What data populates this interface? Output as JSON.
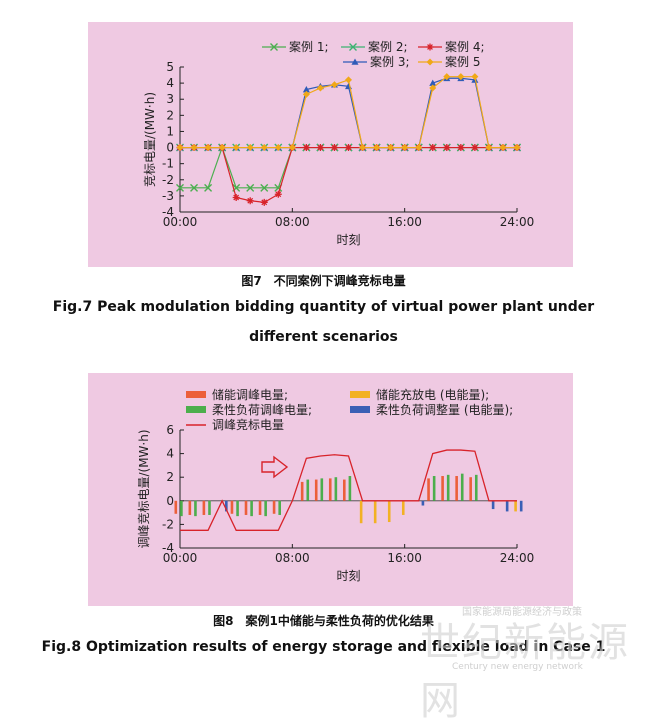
{
  "chart_data": [
    {
      "type": "line",
      "title": "",
      "xlabel": "时刻",
      "ylabel": "竞标电量/(MW·h)",
      "xlim": [
        0,
        24
      ],
      "ylim": [
        -4,
        5
      ],
      "x_ticks": [
        "00:00",
        "08:00",
        "16:00",
        "24:00"
      ],
      "y_ticks": [
        "-4",
        "-3",
        "-2",
        "-1",
        "0",
        "1",
        "2",
        "3",
        "4",
        "5"
      ],
      "legend": [
        "案例 1;",
        "案例 2;",
        "案例 3;",
        "案例 4;",
        "案例 5"
      ],
      "x": [
        0,
        1,
        2,
        3,
        4,
        5,
        6,
        7,
        8,
        9,
        10,
        11,
        12,
        13,
        14,
        15,
        16,
        17,
        18,
        19,
        20,
        21,
        22,
        23,
        24
      ],
      "series": [
        {
          "name": "案例 1;",
          "color": "#4caf50",
          "marker": "x",
          "values": [
            -2.5,
            -2.5,
            -2.5,
            0,
            -2.5,
            -2.5,
            -2.5,
            -2.5,
            0,
            0,
            0,
            0,
            0,
            0,
            0,
            0,
            0,
            0,
            0,
            0,
            0,
            0,
            0,
            0,
            0
          ]
        },
        {
          "name": "案例 2;",
          "color": "#3cb371",
          "marker": "x",
          "values": [
            0,
            0,
            0,
            0,
            0,
            0,
            0,
            0,
            0,
            0,
            0,
            0,
            0,
            0,
            0,
            0,
            0,
            0,
            0,
            0,
            0,
            0,
            0,
            0,
            0
          ]
        },
        {
          "name": "案例 3;",
          "color": "#2f5bb8",
          "marker": "triangle",
          "values": [
            0,
            0,
            0,
            0,
            0,
            0,
            0,
            0,
            0,
            3.6,
            3.8,
            3.9,
            3.8,
            0,
            0,
            0,
            0,
            0,
            4.0,
            4.3,
            4.3,
            4.2,
            0,
            0,
            0
          ]
        },
        {
          "name": "案例 4;",
          "color": "#d8232a",
          "marker": "star",
          "values": [
            0,
            0,
            0,
            0,
            -3.1,
            -3.3,
            -3.4,
            -2.9,
            0,
            0,
            0,
            0,
            0,
            0,
            0,
            0,
            0,
            0,
            0,
            0,
            0,
            0,
            0,
            0,
            0
          ]
        },
        {
          "name": "案例 5",
          "color": "#f0a818",
          "marker": "diamond",
          "values": [
            0,
            0,
            0,
            0,
            0,
            0,
            0,
            0,
            0,
            3.3,
            3.7,
            3.9,
            4.2,
            0,
            0,
            0,
            0,
            0,
            3.7,
            4.4,
            4.4,
            4.4,
            0,
            0,
            0
          ]
        }
      ]
    },
    {
      "type": "bar",
      "title": "",
      "xlabel": "时刻",
      "ylabel": "调峰竞标电量/(MW·h)",
      "xlim": [
        0,
        24
      ],
      "ylim": [
        -4,
        6
      ],
      "x_ticks": [
        "00:00",
        "08:00",
        "16:00",
        "24:00"
      ],
      "y_ticks": [
        "-4",
        "-2",
        "0",
        "2",
        "4",
        "6"
      ],
      "legend": [
        "储能调峰电量;",
        "储能充放电 (电能量);",
        "柔性负荷调峰电量;",
        "柔性负荷调整量 (电能量);",
        "调峰竞标电量"
      ],
      "x": [
        0,
        1,
        2,
        3,
        4,
        5,
        6,
        7,
        8,
        9,
        10,
        11,
        12,
        13,
        14,
        15,
        16,
        17,
        18,
        19,
        20,
        21,
        22,
        23,
        24
      ],
      "series": [
        {
          "name": "储能调峰电量;",
          "color": "#ec5f3a",
          "values": [
            -1.1,
            -1.2,
            -1.2,
            0,
            -1.1,
            -1.2,
            -1.2,
            -1.1,
            0,
            1.6,
            1.8,
            1.9,
            1.8,
            0,
            0,
            0,
            0,
            0,
            1.9,
            2.1,
            2.1,
            2.0,
            0,
            0,
            0
          ]
        },
        {
          "name": "储能充放电 (电能量);",
          "color": "#f2b124",
          "values": [
            0,
            0,
            0,
            0,
            0,
            0,
            0,
            0,
            0,
            0,
            0,
            0,
            0,
            -1.9,
            -1.9,
            -1.8,
            -1.2,
            0,
            0,
            0,
            0,
            0,
            0,
            0,
            -0.9
          ]
        },
        {
          "name": "柔性负荷调峰电量;",
          "color": "#4cae4c",
          "values": [
            -1.3,
            -1.3,
            -1.2,
            0,
            -1.3,
            -1.3,
            -1.3,
            -1.2,
            0,
            1.8,
            1.9,
            2.0,
            2.1,
            0,
            0,
            0,
            0,
            0,
            2.1,
            2.2,
            2.3,
            2.2,
            0,
            0,
            0
          ]
        },
        {
          "name": "柔性负荷调整量 (电能量);",
          "color": "#3a5fb5",
          "values": [
            0,
            0,
            0,
            -0.9,
            0,
            0,
            0,
            0,
            0,
            0,
            0,
            0,
            0,
            0,
            0,
            0,
            0,
            -0.4,
            0,
            0,
            0,
            0,
            -0.7,
            -0.9,
            -0.9
          ]
        },
        {
          "name": "调峰竞标电量",
          "color": "#d8232a",
          "kind": "line",
          "values": [
            -2.5,
            -2.5,
            -2.5,
            0,
            -2.5,
            -2.5,
            -2.5,
            -2.5,
            0,
            3.6,
            3.8,
            3.9,
            3.8,
            0,
            0,
            0,
            0,
            0,
            4.0,
            4.3,
            4.3,
            4.2,
            0,
            0,
            0
          ]
        }
      ]
    }
  ],
  "captions": {
    "fig7_cn": "图7　不同案例下调峰竞标电量",
    "fig7_en": "Fig.7  Peak modulation bidding quantity of virtual power plant under different scenarios",
    "fig8_cn": "图8　案例1中储能与柔性负荷的优化结果",
    "fig8_en": "Fig.8  Optimization results of energy storage and flexible load in Case 1"
  },
  "watermark": {
    "line1": "国家能源局能源经济与政策",
    "big": "世纪新能源网",
    "url": "Century new energy network"
  }
}
